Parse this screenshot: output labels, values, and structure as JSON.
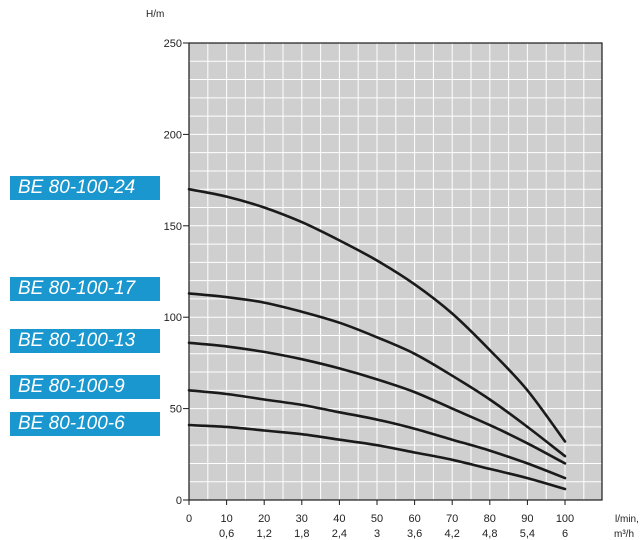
{
  "chart_data": {
    "type": "line",
    "ylabel": "H/m",
    "xlabel": "l/min,",
    "xlabel2": "m³/h",
    "xlim": [
      0,
      110
    ],
    "ylim": [
      0,
      250
    ],
    "grid": true,
    "x_ticks": [
      {
        "value": 0,
        "l_min": "0",
        "m3h": ""
      },
      {
        "value": 10,
        "l_min": "10",
        "m3h": "0,6"
      },
      {
        "value": 20,
        "l_min": "20",
        "m3h": "1,2"
      },
      {
        "value": 30,
        "l_min": "30",
        "m3h": "1,8"
      },
      {
        "value": 40,
        "l_min": "40",
        "m3h": "2,4"
      },
      {
        "value": 50,
        "l_min": "50",
        "m3h": "3"
      },
      {
        "value": 60,
        "l_min": "60",
        "m3h": "3,6"
      },
      {
        "value": 70,
        "l_min": "70",
        "m3h": "4,2"
      },
      {
        "value": 80,
        "l_min": "80",
        "m3h": "4,8"
      },
      {
        "value": 90,
        "l_min": "90",
        "m3h": "5,4"
      },
      {
        "value": 100,
        "l_min": "100",
        "m3h": "6"
      }
    ],
    "y_ticks": [
      "0",
      "50",
      "100",
      "150",
      "200",
      "250"
    ],
    "series": [
      {
        "name": "BE 80-100-24",
        "x": [
          0,
          10,
          20,
          30,
          40,
          50,
          60,
          70,
          80,
          90,
          100
        ],
        "y": [
          170,
          166,
          160,
          152,
          142,
          131,
          118,
          102,
          82,
          60,
          32
        ]
      },
      {
        "name": "BE 80-100-17",
        "x": [
          0,
          10,
          20,
          30,
          40,
          50,
          60,
          70,
          80,
          90,
          100
        ],
        "y": [
          113,
          111,
          108,
          103,
          97,
          89,
          80,
          68,
          55,
          40,
          24
        ]
      },
      {
        "name": "BE 80-100-13",
        "x": [
          0,
          10,
          20,
          30,
          40,
          50,
          60,
          70,
          80,
          90,
          100
        ],
        "y": [
          86,
          84,
          81,
          77,
          72,
          66,
          59,
          50,
          41,
          31,
          20
        ]
      },
      {
        "name": "BE 80-100-9",
        "x": [
          0,
          10,
          20,
          30,
          40,
          50,
          60,
          70,
          80,
          90,
          100
        ],
        "y": [
          60,
          58,
          55,
          52,
          48,
          44,
          39,
          33,
          27,
          20,
          12
        ]
      },
      {
        "name": "BE 80-100-6",
        "x": [
          0,
          10,
          20,
          30,
          40,
          50,
          60,
          70,
          80,
          90,
          100
        ],
        "y": [
          41,
          40,
          38,
          36,
          33,
          30,
          26,
          22,
          17,
          12,
          6
        ]
      }
    ]
  },
  "colors": {
    "plot_background": "#cfcfcf",
    "grid": "#ffffff",
    "curve": "#1a1a1a",
    "label_fill": "#1b97cf",
    "label_text": "#ffffff"
  }
}
